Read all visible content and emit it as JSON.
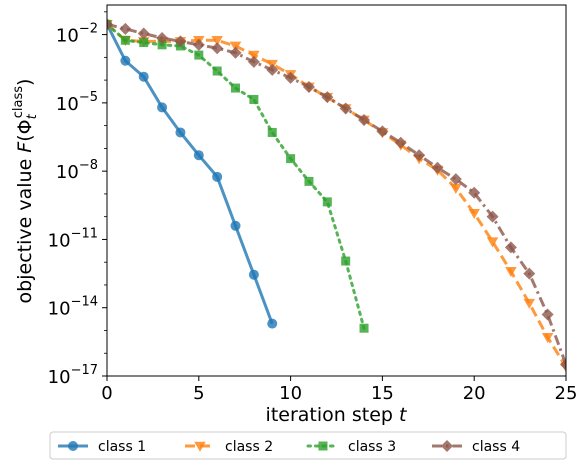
{
  "chart_data": {
    "type": "line",
    "xlabel": "iteration step t",
    "ylabel": "objective value F(Φ_t^class)",
    "ylabel_parts": {
      "main": "objective value ",
      "F": "F",
      "paren_open": "(",
      "phi": "Φ",
      "sub": "t",
      "sup": "class",
      "paren_close": ")"
    },
    "xlabel_parts": {
      "main": "iteration step ",
      "var": "t"
    },
    "xlim": [
      0,
      25
    ],
    "ylim_log10": [
      -17,
      -0.7
    ],
    "yscale": "log",
    "x_ticks": [
      0,
      5,
      10,
      15,
      20,
      25
    ],
    "x_tick_labels": [
      "0",
      "5",
      "10",
      "15",
      "20",
      "25"
    ],
    "y_ticks_log10": [
      -2,
      -5,
      -8,
      -11,
      -14,
      -17
    ],
    "y_tick_labels": [
      {
        "base": "10",
        "exp": "−2"
      },
      {
        "base": "10",
        "exp": "−5"
      },
      {
        "base": "10",
        "exp": "−8"
      },
      {
        "base": "10",
        "exp": "−11"
      },
      {
        "base": "10",
        "exp": "−14"
      },
      {
        "base": "10",
        "exp": "−17"
      }
    ],
    "grid": false,
    "legend_position": "below plot, single row",
    "series": [
      {
        "name": "class 1",
        "color": "#1f77b4",
        "marker": "circle",
        "linestyle": "solid",
        "x": [
          0,
          1,
          2,
          3,
          4,
          5,
          6,
          7,
          8,
          9
        ],
        "log10_y": [
          -1.55,
          -3.15,
          -3.85,
          -5.2,
          -6.3,
          -7.3,
          -8.25,
          -10.4,
          -12.55,
          -14.7
        ]
      },
      {
        "name": "class 2",
        "color": "#ff7f0e",
        "marker": "triangle-down",
        "linestyle": "dashed",
        "x": [
          0,
          1,
          2,
          3,
          4,
          5,
          6,
          7,
          8,
          9,
          10,
          11,
          12,
          13,
          14,
          15,
          16,
          17,
          18,
          19,
          20,
          21,
          22,
          23,
          24,
          25
        ],
        "log10_y": [
          -1.55,
          -2.25,
          -2.3,
          -2.3,
          -2.3,
          -2.25,
          -2.25,
          -2.5,
          -2.9,
          -3.3,
          -3.75,
          -4.3,
          -4.75,
          -5.25,
          -5.75,
          -6.3,
          -6.85,
          -7.45,
          -7.95,
          -8.75,
          -9.85,
          -11.1,
          -12.4,
          -13.8,
          -15.3,
          -16.6
        ]
      },
      {
        "name": "class 3",
        "color": "#2ca02c",
        "marker": "square",
        "linestyle": "dotted",
        "x": [
          0,
          1,
          2,
          3,
          4,
          5,
          6,
          7,
          8,
          9,
          10,
          11,
          12,
          13,
          14
        ],
        "log10_y": [
          -1.55,
          -2.25,
          -2.35,
          -2.45,
          -2.5,
          -2.9,
          -3.6,
          -4.35,
          -4.85,
          -6.3,
          -7.45,
          -8.45,
          -9.35,
          -11.95,
          -14.9
        ]
      },
      {
        "name": "class 4",
        "color": "#8c564b",
        "marker": "diamond",
        "linestyle": "dashdot",
        "x": [
          0,
          1,
          2,
          3,
          4,
          5,
          6,
          7,
          8,
          9,
          10,
          11,
          12,
          13,
          14,
          15,
          16,
          17,
          18,
          19,
          20,
          21,
          22,
          23,
          24,
          25
        ],
        "log10_y": [
          -1.55,
          -1.75,
          -1.95,
          -2.15,
          -2.3,
          -2.45,
          -2.6,
          -2.8,
          -3.2,
          -3.55,
          -3.9,
          -4.3,
          -4.75,
          -5.25,
          -5.75,
          -6.25,
          -6.75,
          -7.3,
          -7.85,
          -8.35,
          -8.95,
          -10.0,
          -11.35,
          -12.5,
          -14.3,
          -16.5
        ]
      }
    ]
  }
}
